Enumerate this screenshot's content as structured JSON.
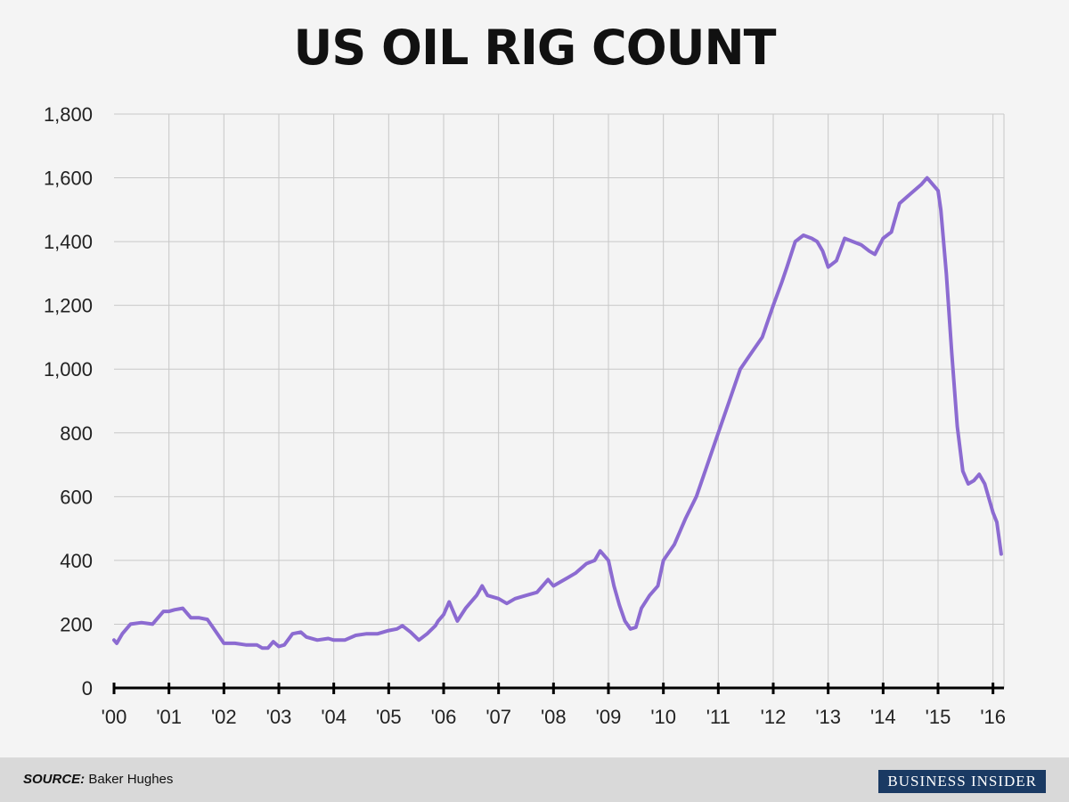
{
  "colors": {
    "background": "#f4f4f4",
    "line": "#8c6bd1",
    "grid": "#c8c8c8",
    "axis": "#000000",
    "footer": "#d9d9d9",
    "brand_bg": "#1a3a63"
  },
  "footer": {
    "source_label": "SOURCE:",
    "source_text": "Baker Hughes",
    "brand": "Business Insider"
  },
  "chart_data": {
    "type": "line",
    "title": "US OIL RIG COUNT",
    "xlabel": "",
    "ylabel": "",
    "ylim": [
      0,
      1800
    ],
    "xlim": [
      2000,
      2016.2
    ],
    "grid": true,
    "y_ticks": [
      0,
      200,
      400,
      600,
      800,
      1000,
      1200,
      1400,
      1600,
      1800
    ],
    "y_tick_labels": [
      "0",
      "200",
      "400",
      "600",
      "800",
      "1,000",
      "1,200",
      "1,400",
      "1,600",
      "1,800"
    ],
    "x_ticks": [
      2000,
      2001,
      2002,
      2003,
      2004,
      2005,
      2006,
      2007,
      2008,
      2009,
      2010,
      2011,
      2012,
      2013,
      2014,
      2015,
      2016
    ],
    "x_tick_labels": [
      "'00",
      "'01",
      "'02",
      "'03",
      "'04",
      "'05",
      "'06",
      "'07",
      "'08",
      "'09",
      "'10",
      "'11",
      "'12",
      "'13",
      "'14",
      "'15",
      "'16"
    ],
    "series": [
      {
        "x": [
          2000.0,
          2000.05,
          2000.15,
          2000.3,
          2000.5,
          2000.7,
          2000.9,
          2001.0,
          2001.1,
          2001.25,
          2001.4,
          2001.55,
          2001.7,
          2001.8,
          2001.9,
          2002.0,
          2002.2,
          2002.4,
          2002.6,
          2002.7,
          2002.8,
          2002.9,
          2003.0,
          2003.1,
          2003.25,
          2003.4,
          2003.5,
          2003.7,
          2003.9,
          2004.0,
          2004.2,
          2004.4,
          2004.6,
          2004.8,
          2005.0,
          2005.15,
          2005.25,
          2005.4,
          2005.55,
          2005.7,
          2005.85,
          2005.9,
          2006.0,
          2006.1,
          2006.25,
          2006.4,
          2006.6,
          2006.7,
          2006.8,
          2007.0,
          2007.15,
          2007.3,
          2007.5,
          2007.7,
          2007.9,
          2008.0,
          2008.2,
          2008.4,
          2008.6,
          2008.75,
          2008.85,
          2009.0,
          2009.1,
          2009.2,
          2009.3,
          2009.4,
          2009.5,
          2009.6,
          2009.75,
          2009.9,
          2010.0,
          2010.2,
          2010.4,
          2010.6,
          2010.8,
          2011.0,
          2011.2,
          2011.4,
          2011.6,
          2011.8,
          2012.0,
          2012.15,
          2012.25,
          2012.4,
          2012.55,
          2012.7,
          2012.8,
          2012.9,
          2013.0,
          2013.15,
          2013.3,
          2013.45,
          2013.6,
          2013.75,
          2013.85,
          2014.0,
          2014.15,
          2014.3,
          2014.5,
          2014.7,
          2014.8,
          2014.9,
          2015.0,
          2015.05,
          2015.15,
          2015.25,
          2015.35,
          2015.45,
          2015.55,
          2015.65,
          2015.75,
          2015.85,
          2015.95,
          2016.0,
          2016.07,
          2016.15
        ],
        "values": [
          150,
          140,
          170,
          200,
          205,
          200,
          240,
          240,
          245,
          250,
          220,
          220,
          215,
          190,
          165,
          140,
          140,
          135,
          135,
          125,
          125,
          145,
          130,
          135,
          170,
          175,
          160,
          150,
          155,
          150,
          150,
          165,
          170,
          170,
          180,
          185,
          195,
          175,
          150,
          170,
          195,
          210,
          230,
          270,
          210,
          250,
          290,
          320,
          290,
          280,
          265,
          280,
          290,
          300,
          340,
          320,
          340,
          360,
          390,
          400,
          430,
          400,
          320,
          260,
          210,
          185,
          190,
          250,
          290,
          320,
          400,
          450,
          530,
          600,
          700,
          800,
          900,
          1000,
          1050,
          1100,
          1200,
          1270,
          1320,
          1400,
          1420,
          1410,
          1400,
          1370,
          1320,
          1340,
          1410,
          1400,
          1390,
          1370,
          1360,
          1410,
          1430,
          1520,
          1550,
          1580,
          1600,
          1580,
          1560,
          1500,
          1300,
          1050,
          820,
          680,
          640,
          650,
          670,
          640,
          580,
          550,
          520,
          420
        ]
      }
    ]
  }
}
